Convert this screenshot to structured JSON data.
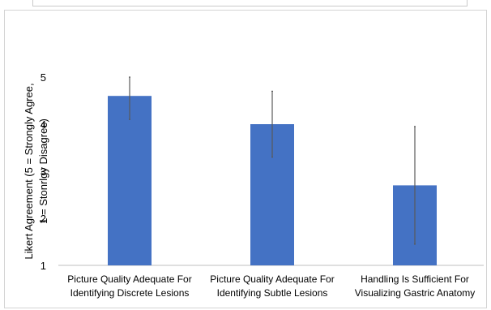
{
  "chart_data": {
    "type": "bar",
    "categories": [
      [
        "Picture Quality Adequate For",
        "Identifying Discrete Lesions"
      ],
      [
        "Picture Quality Adequate For",
        "Identifying Subtle Lesions"
      ],
      [
        "Handling Is Sufficient For",
        "Visualizing Gastric Anatomy"
      ]
    ],
    "values": [
      4.6,
      4.0,
      2.7
    ],
    "error_low": [
      4.1,
      3.3,
      1.45
    ],
    "error_high": [
      5.0,
      4.7,
      3.95
    ],
    "ylabel": [
      "Likert Agreement (5 = Strongly Agree,",
      "1 = Stonrlgy Disagree)"
    ],
    "ylim": [
      1,
      5
    ],
    "yticks": [
      "1",
      "2",
      "3",
      "4",
      "5"
    ],
    "grid": false,
    "bar_color": "#4472c4",
    "error_bar_color": "#595959",
    "axis_color": "#bfbfbf"
  }
}
